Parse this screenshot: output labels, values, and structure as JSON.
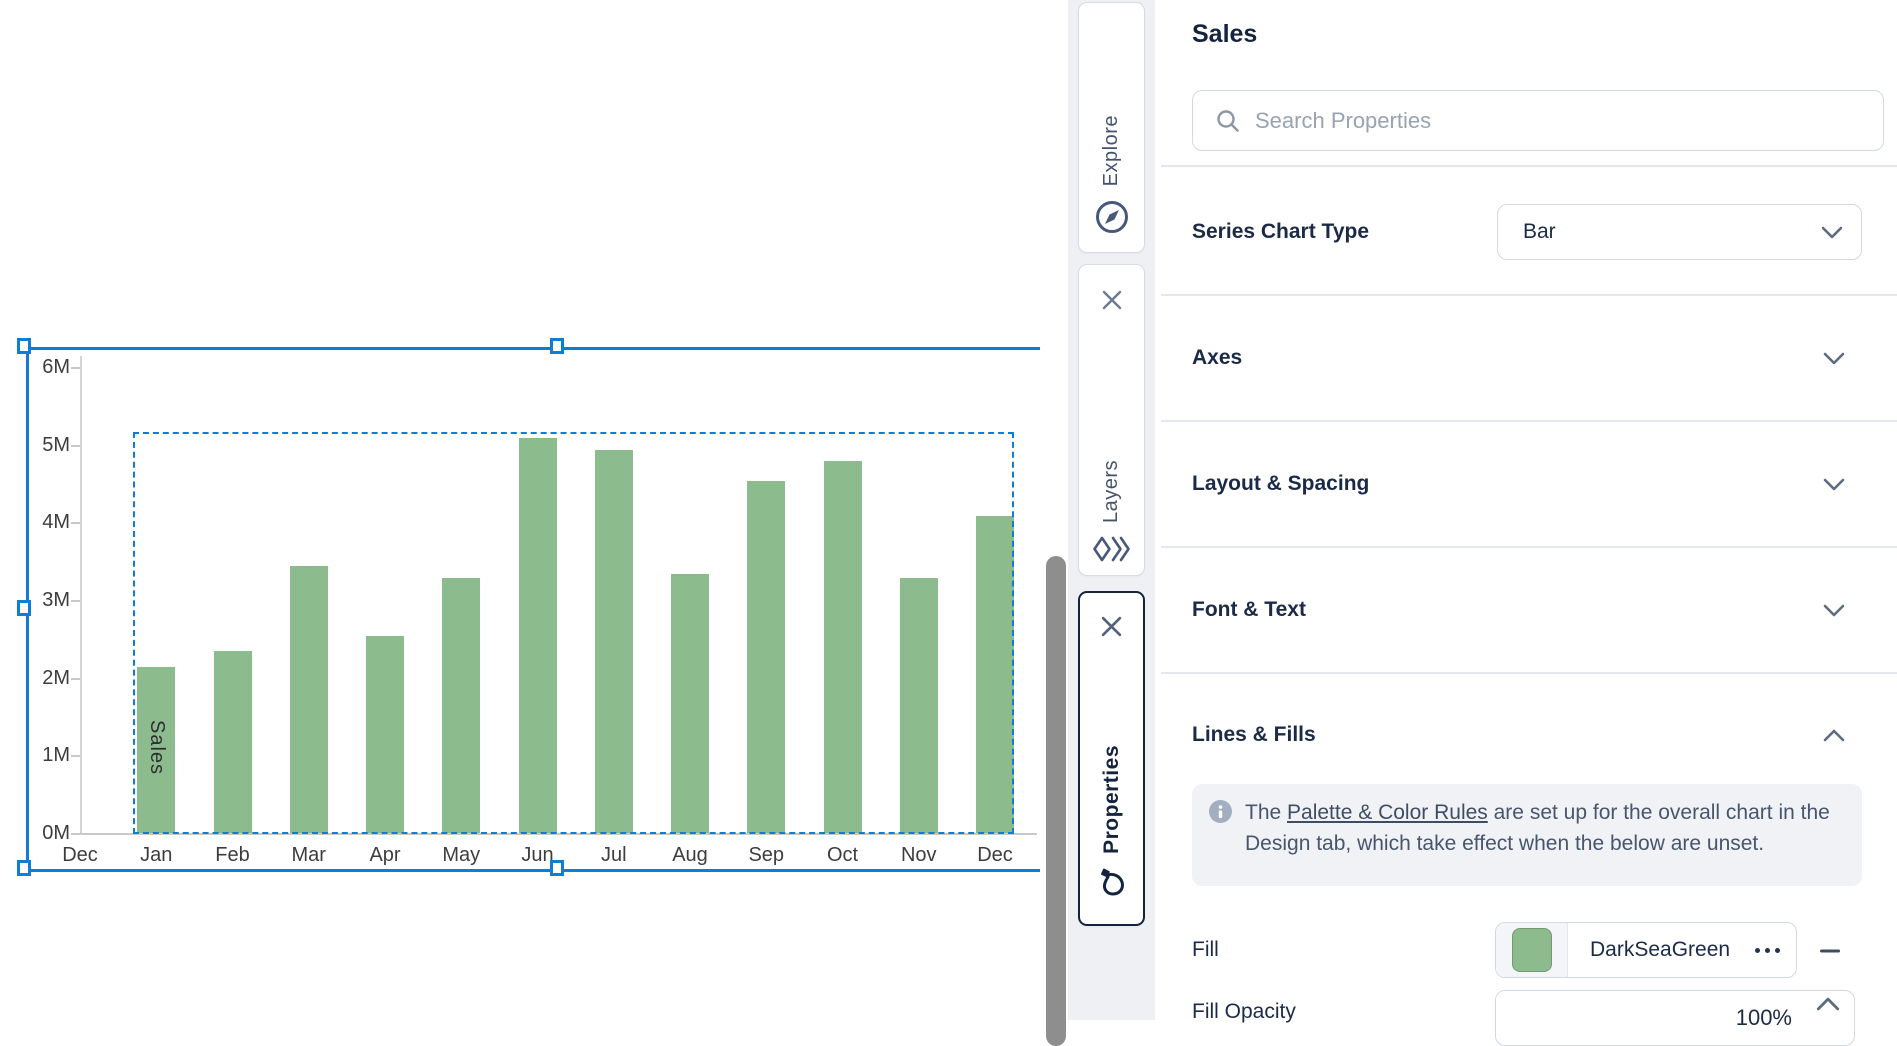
{
  "chart_data": {
    "type": "bar",
    "title": "",
    "xlabel": "",
    "ylabel": "",
    "x_axis_labels": [
      "Dec",
      "Jan",
      "Feb",
      "Mar",
      "Apr",
      "May",
      "Jun",
      "Jul",
      "Aug",
      "Sep",
      "Oct",
      "Nov",
      "Dec"
    ],
    "categories": [
      "Jan",
      "Feb",
      "Mar",
      "Apr",
      "May",
      "Jun",
      "Jul",
      "Aug",
      "Sep",
      "Oct",
      "Nov",
      "Dec"
    ],
    "series": [
      {
        "name": "Sales",
        "values_millions": [
          2.15,
          2.35,
          3.45,
          2.55,
          3.3,
          5.1,
          4.95,
          3.35,
          4.55,
          4.8,
          3.3,
          4.1
        ]
      }
    ],
    "y_ticks": [
      "0M",
      "1M",
      "2M",
      "3M",
      "4M",
      "5M",
      "6M"
    ],
    "ylim": [
      0,
      6
    ],
    "grid": false,
    "legend": false,
    "series_label_on_first_bar": "Sales",
    "bar_color": "#8cbb8e",
    "selection": {
      "selected": true,
      "selection_color": "#0d7ed1"
    }
  },
  "rail": {
    "tabs": [
      {
        "label": "Explore",
        "icon": "compass-icon",
        "active": false,
        "closable": false
      },
      {
        "label": "Layers",
        "icon": "layers-icon",
        "active": false,
        "closable": true
      },
      {
        "label": "Properties",
        "icon": "paint-drop-icon",
        "active": true,
        "closable": true
      }
    ]
  },
  "panel": {
    "title": "Sales",
    "search_placeholder": "Search Properties",
    "series_chart_type_label": "Series Chart Type",
    "series_chart_type_value": "Bar",
    "sections": [
      {
        "label": "Axes",
        "expanded": false
      },
      {
        "label": "Layout & Spacing",
        "expanded": false
      },
      {
        "label": "Font & Text",
        "expanded": false
      },
      {
        "label": "Lines & Fills",
        "expanded": true
      }
    ],
    "note": {
      "text_before_link": "The ",
      "link_text": "Palette & Color Rules",
      "text_after_link": " are set up for the overall chart in the Design tab, which take effect when the below are unset."
    },
    "fill_label": "Fill",
    "fill_value": "DarkSeaGreen",
    "fill_swatch_color": "#8cbb8e",
    "fill_opacity_label": "Fill Opacity",
    "fill_opacity_value": "100%"
  },
  "icons": {
    "search-icon": "magnifier",
    "compass-icon": "compass in circle",
    "layers-icon": "diamond with double chevrons",
    "paint-drop-icon": "paint drop with nozzle",
    "close-icon": "x",
    "chevron-down-icon": "v",
    "chevron-up-icon": "^",
    "info-icon": "i in circle",
    "more-options-icon": "three dots",
    "remove-icon": "minus"
  },
  "colors": {
    "selection_blue": "#0d7ed1",
    "bar_green": "#8cbb8e",
    "panel_navy": "#15243e"
  }
}
